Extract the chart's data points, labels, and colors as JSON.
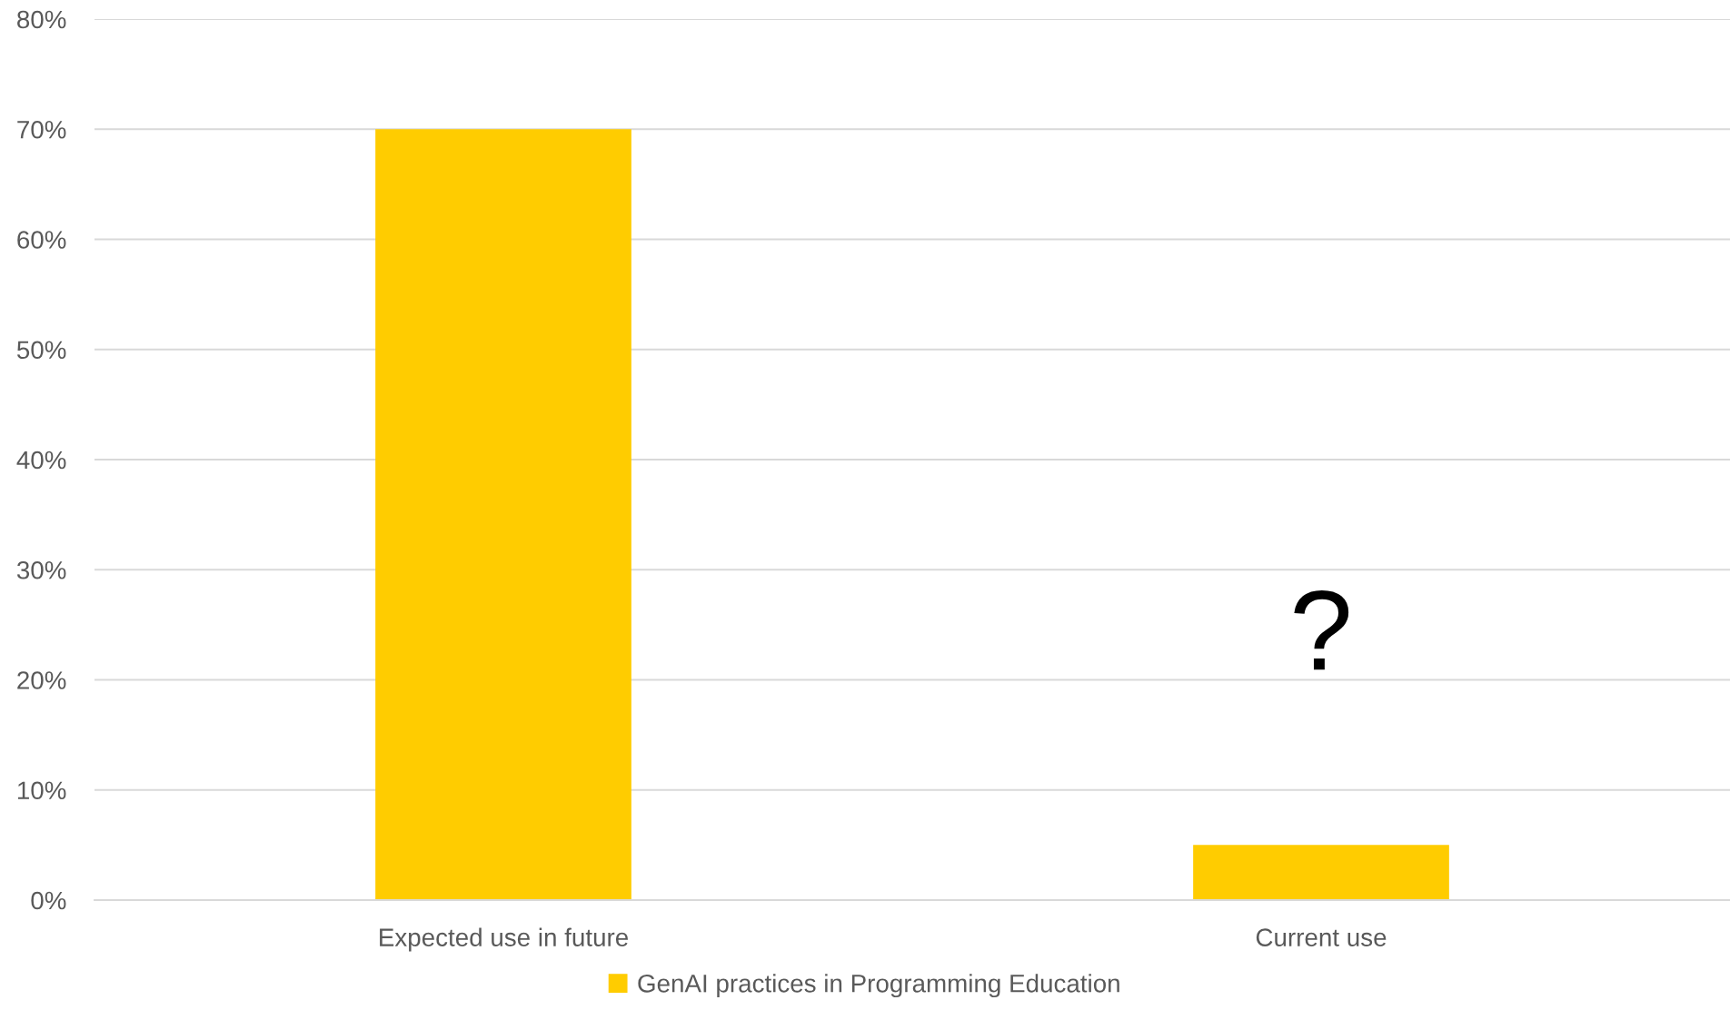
{
  "chart_data": {
    "type": "bar",
    "categories": [
      "Expected use in future",
      "Current use"
    ],
    "series": [
      {
        "name": "GenAI practices in Programming Education",
        "color": "#ffcc00",
        "values": [
          70,
          5
        ]
      }
    ],
    "ylim": [
      0,
      80
    ],
    "yticks": [
      {
        "value": 0,
        "label": "0%"
      },
      {
        "value": 10,
        "label": "10%"
      },
      {
        "value": 20,
        "label": "20%"
      },
      {
        "value": 30,
        "label": "30%"
      },
      {
        "value": 40,
        "label": "40%"
      },
      {
        "value": 50,
        "label": "50%"
      },
      {
        "value": 60,
        "label": "60%"
      },
      {
        "value": 70,
        "label": "70%"
      },
      {
        "value": 80,
        "label": "80%"
      }
    ],
    "grid": "y",
    "legend": "bottom",
    "annotations": [
      "?"
    ]
  }
}
